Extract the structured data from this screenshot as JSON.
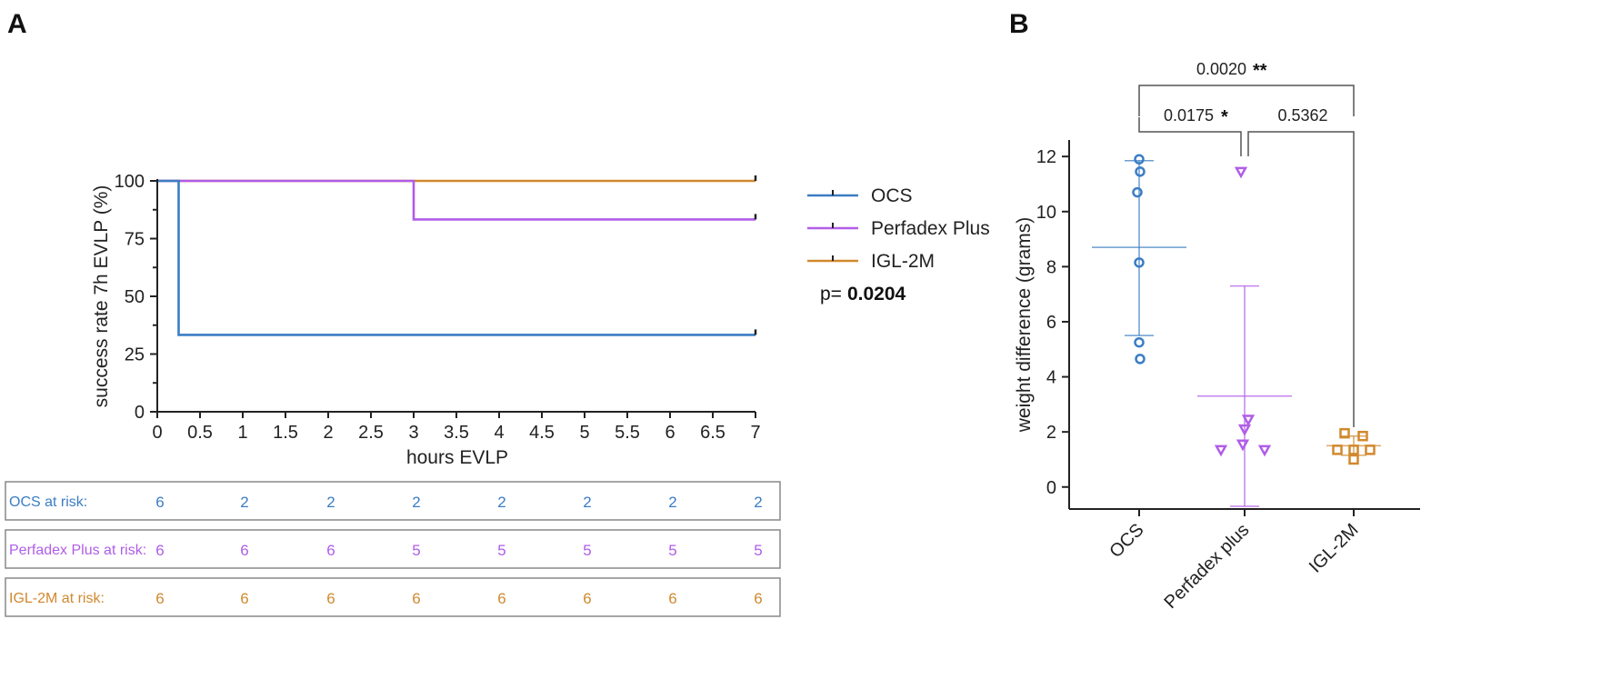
{
  "colors": {
    "ocs": "#3b7dc4",
    "perfadex": "#b05de8",
    "igl": "#d1892e",
    "axis": "#222222"
  },
  "panel_a": {
    "letter": "A",
    "p_label": "p=",
    "p_value": "0.0204"
  },
  "panel_b": {
    "letter": "B"
  },
  "risk_table": {
    "rows": [
      {
        "label": "OCS at risk:",
        "values": [
          "6",
          "2",
          "2",
          "2",
          "2",
          "2",
          "2",
          "2"
        ]
      },
      {
        "label": "Perfadex Plus at risk:",
        "values": [
          "6",
          "6",
          "6",
          "5",
          "5",
          "5",
          "5",
          "5"
        ]
      },
      {
        "label": "IGL-2M at risk:",
        "values": [
          "6",
          "6",
          "6",
          "6",
          "6",
          "6",
          "6",
          "6"
        ]
      }
    ]
  },
  "chart_data": [
    {
      "type": "line",
      "subtype": "kaplan-meier",
      "xlabel": "hours EVLP",
      "ylabel": "success rate 7h EVLP (%)",
      "xlim": [
        0,
        7
      ],
      "ylim": [
        0,
        100
      ],
      "x_ticks": [
        "0",
        "0.5",
        "1",
        "1.5",
        "2",
        "2.5",
        "3",
        "3.5",
        "4",
        "4.5",
        "5",
        "5.5",
        "6",
        "6.5",
        "7"
      ],
      "y_ticks": [
        "0",
        "25",
        "50",
        "75",
        "100"
      ],
      "legend_position": "right",
      "series": [
        {
          "name": "OCS",
          "color": "#3b7dc4",
          "steps": [
            [
              0,
              100
            ],
            [
              0.25,
              100
            ],
            [
              0.25,
              33.3
            ],
            [
              7,
              33.3
            ]
          ]
        },
        {
          "name": "Perfadex Plus",
          "color": "#b05de8",
          "steps": [
            [
              0,
              100
            ],
            [
              3,
              100
            ],
            [
              3,
              83.3
            ],
            [
              7,
              83.3
            ]
          ]
        },
        {
          "name": "IGL-2M",
          "color": "#d1892e",
          "steps": [
            [
              0,
              100
            ],
            [
              7,
              100
            ]
          ]
        }
      ]
    },
    {
      "type": "scatter",
      "ylabel": "weight difference (grams)",
      "ylim": [
        -0.8,
        12.6
      ],
      "y_ticks": [
        "0",
        "2",
        "4",
        "6",
        "8",
        "10",
        "12"
      ],
      "categories": [
        "OCS",
        "Perfadex plus",
        "IGL-2M"
      ],
      "groups": [
        {
          "name": "OCS",
          "color": "#3b7dc4",
          "marker": "circle",
          "points": [
            11.9,
            11.45,
            10.7,
            8.15,
            5.25,
            4.65
          ],
          "mean": 8.7,
          "sd_low": 5.5,
          "sd_high": 11.85
        },
        {
          "name": "Perfadex plus",
          "color": "#b05de8",
          "marker": "triangle-down",
          "points": [
            11.45,
            2.45,
            2.1,
            1.55,
            1.35,
            1.35
          ],
          "mean": 3.3,
          "sd_low": -0.7,
          "sd_high": 7.3
        },
        {
          "name": "IGL-2M",
          "color": "#d1892e",
          "marker": "square",
          "points": [
            1.95,
            1.85,
            1.35,
            1.35,
            1.35,
            1.0
          ],
          "mean": 1.5,
          "sd_low": 1.15,
          "sd_high": 1.85
        }
      ],
      "comparisons": [
        {
          "from": "OCS",
          "to": "IGL-2M",
          "p": "0.0020",
          "stars": "**"
        },
        {
          "from": "OCS",
          "to": "Perfadex plus",
          "p": "0.0175",
          "stars": "*"
        },
        {
          "from": "Perfadex plus",
          "to": "IGL-2M",
          "p": "0.5362",
          "stars": ""
        }
      ]
    }
  ]
}
